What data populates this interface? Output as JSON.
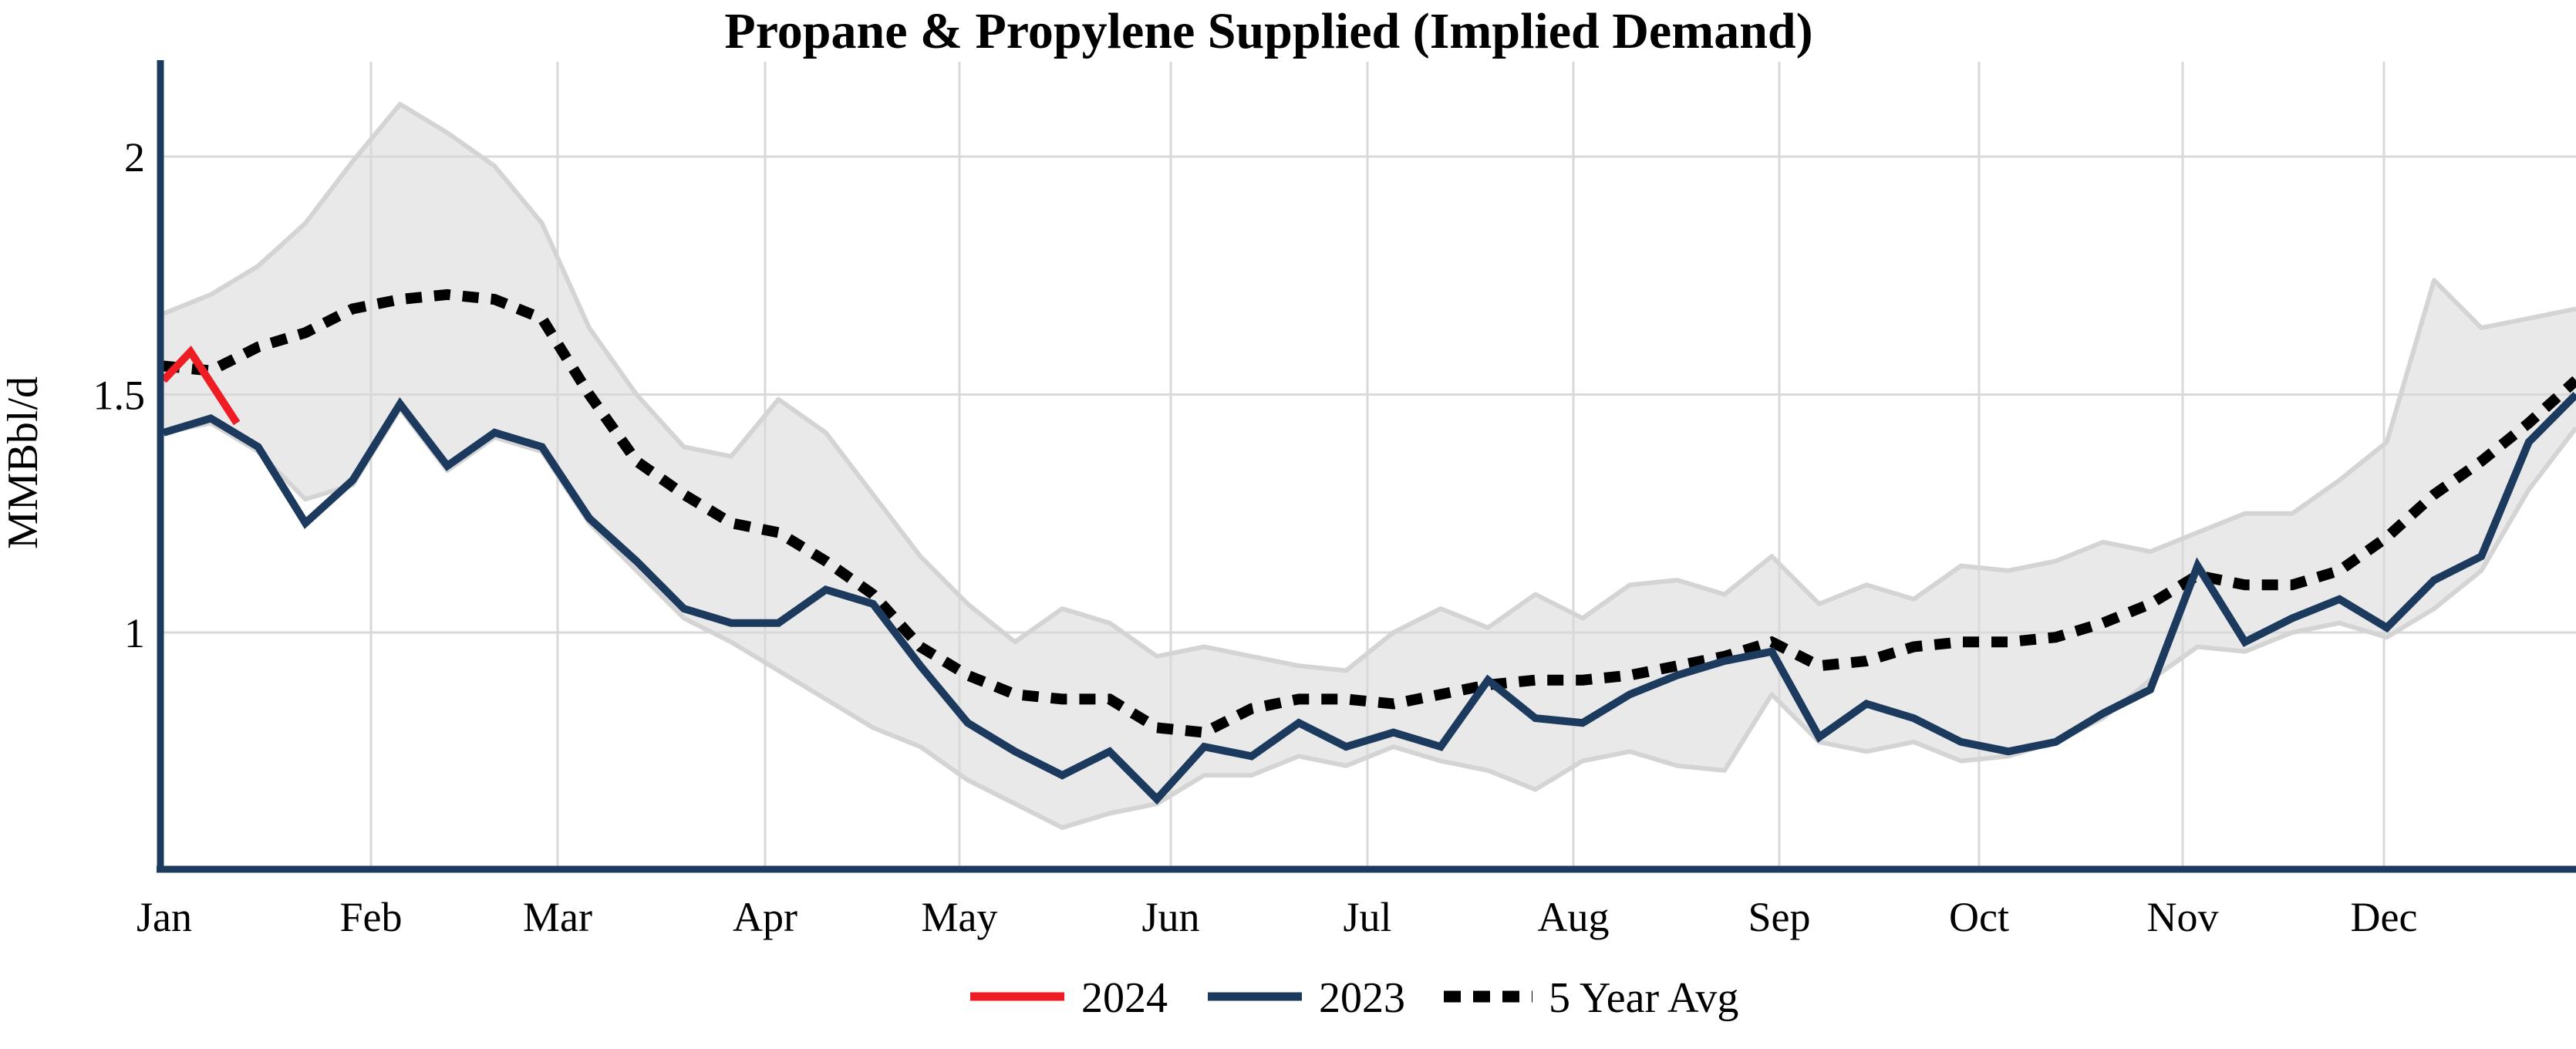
{
  "title": "Propane & Propylene Supplied (Implied Demand)",
  "chart_data": {
    "type": "line",
    "title": "Propane & Propylene Supplied (Implied Demand)",
    "xlabel": "",
    "ylabel": "MMBbl/d",
    "x_tick_labels": [
      "Jan",
      "Feb",
      "Mar",
      "Apr",
      "May",
      "Jun",
      "Jul",
      "Aug",
      "Sep",
      "Oct",
      "Nov",
      "Dec"
    ],
    "y_ticks": [
      {
        "label": "2",
        "value": 2.0
      },
      {
        "label": "1.5",
        "value": 1.5
      },
      {
        "label": "1",
        "value": 1.0
      }
    ],
    "ylim": [
      0.5,
      2.27
    ],
    "grid": "on",
    "legend_position": "bottom-center",
    "legend": [
      {
        "label": "2024",
        "style": "solid",
        "color": "#ee1c23"
      },
      {
        "label": "2023",
        "style": "solid",
        "color": "#1b3a5e"
      },
      {
        "label": "5 Year Avg",
        "style": "dotted",
        "color": "#000000"
      }
    ],
    "colors": {
      "red_2024": "#ee1c23",
      "navy_2023": "#1b3a5e",
      "avg_dotted": "#000000",
      "band_fill": "#e9e9e9",
      "band_edge": "#d4d4d4",
      "gridline": "#d9d9d9",
      "axis": "#1b3a5e"
    },
    "series": [
      {
        "name": "2024",
        "type": "line",
        "color": "#ee1c23",
        "x_weeks": [
          1,
          1.57,
          2.55
        ],
        "values": [
          1.53,
          1.59,
          1.44
        ]
      },
      {
        "name": "2023",
        "type": "line",
        "color": "#1b3a5e",
        "x_weeks": "1-52",
        "values": [
          1.42,
          1.45,
          1.39,
          1.23,
          1.32,
          1.48,
          1.35,
          1.42,
          1.39,
          1.24,
          1.15,
          1.05,
          1.02,
          1.02,
          1.09,
          1.06,
          0.93,
          0.81,
          0.75,
          0.7,
          0.75,
          0.65,
          0.76,
          0.74,
          0.81,
          0.76,
          0.79,
          0.76,
          0.9,
          0.82,
          0.81,
          0.87,
          0.91,
          0.94,
          0.96,
          0.78,
          0.85,
          0.82,
          0.77,
          0.75,
          0.77,
          0.83,
          0.88,
          1.14,
          0.98,
          1.03,
          1.07,
          1.01,
          1.11,
          1.16,
          1.4,
          1.5
        ]
      },
      {
        "name": "5 Year Avg",
        "type": "line-dotted",
        "color": "#000000",
        "x_weeks": "1-52",
        "values": [
          1.56,
          1.55,
          1.6,
          1.63,
          1.68,
          1.7,
          1.71,
          1.7,
          1.66,
          1.5,
          1.36,
          1.29,
          1.23,
          1.21,
          1.15,
          1.08,
          0.97,
          0.91,
          0.87,
          0.86,
          0.86,
          0.8,
          0.79,
          0.84,
          0.86,
          0.86,
          0.85,
          0.87,
          0.89,
          0.9,
          0.9,
          0.91,
          0.93,
          0.95,
          0.98,
          0.93,
          0.94,
          0.97,
          0.98,
          0.98,
          0.99,
          1.02,
          1.06,
          1.12,
          1.1,
          1.1,
          1.13,
          1.2,
          1.29,
          1.36,
          1.44,
          1.53
        ]
      },
      {
        "name": "5 Year Range",
        "type": "band",
        "fill": "#e9e9e9",
        "x_weeks": "1-52",
        "upper": [
          1.67,
          1.71,
          1.77,
          1.86,
          1.99,
          2.11,
          2.05,
          1.98,
          1.86,
          1.64,
          1.5,
          1.39,
          1.37,
          1.49,
          1.42,
          1.29,
          1.16,
          1.06,
          0.98,
          1.05,
          1.02,
          0.95,
          0.97,
          0.95,
          0.93,
          0.92,
          1.0,
          1.05,
          1.01,
          1.08,
          1.03,
          1.1,
          1.11,
          1.08,
          1.16,
          1.06,
          1.1,
          1.07,
          1.14,
          1.13,
          1.15,
          1.19,
          1.17,
          1.21,
          1.25,
          1.25,
          1.32,
          1.4,
          1.74,
          1.64,
          1.66,
          1.68
        ],
        "lower": [
          1.42,
          1.44,
          1.38,
          1.28,
          1.31,
          1.47,
          1.34,
          1.41,
          1.38,
          1.23,
          1.13,
          1.03,
          0.98,
          0.92,
          0.86,
          0.8,
          0.76,
          0.69,
          0.64,
          0.59,
          0.62,
          0.64,
          0.7,
          0.7,
          0.74,
          0.72,
          0.76,
          0.73,
          0.71,
          0.67,
          0.73,
          0.75,
          0.72,
          0.71,
          0.87,
          0.77,
          0.75,
          0.77,
          0.73,
          0.74,
          0.77,
          0.82,
          0.9,
          0.97,
          0.96,
          1.0,
          1.02,
          0.99,
          1.05,
          1.13,
          1.3,
          1.43
        ]
      }
    ]
  }
}
